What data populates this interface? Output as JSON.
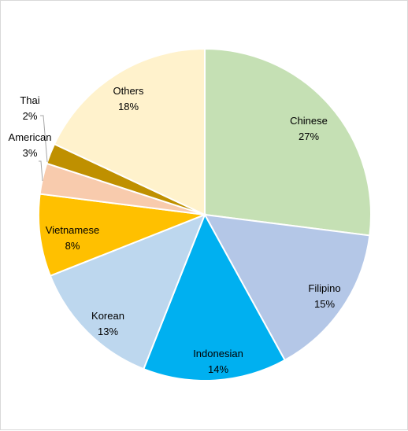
{
  "chart_data": {
    "type": "pie",
    "title": "",
    "slices": [
      {
        "label": "Chinese",
        "value": 27,
        "value_label": "27%",
        "color": "#c5e0b4"
      },
      {
        "label": "Filipino",
        "value": 15,
        "value_label": "15%",
        "color": "#b4c7e7"
      },
      {
        "label": "Indonesian",
        "value": 14,
        "value_label": "14%",
        "color": "#00b0f0"
      },
      {
        "label": "Korean",
        "value": 13,
        "value_label": "13%",
        "color": "#bdd7ee"
      },
      {
        "label": "Vietnamese",
        "value": 8,
        "value_label": "8%",
        "color": "#ffc000"
      },
      {
        "label": "American",
        "value": 3,
        "value_label": "3%",
        "color": "#f8cbad"
      },
      {
        "label": "Thai",
        "value": 2,
        "value_label": "2%",
        "color": "#bf9000"
      },
      {
        "label": "Others",
        "value": 18,
        "value_label": "18%",
        "color": "#fff2cc"
      }
    ],
    "start_angle": "12 o'clock",
    "direction": "clockwise",
    "slice_border_color": "#ffffff",
    "legend": "none",
    "leader_line_color": "#a6a6a6"
  }
}
